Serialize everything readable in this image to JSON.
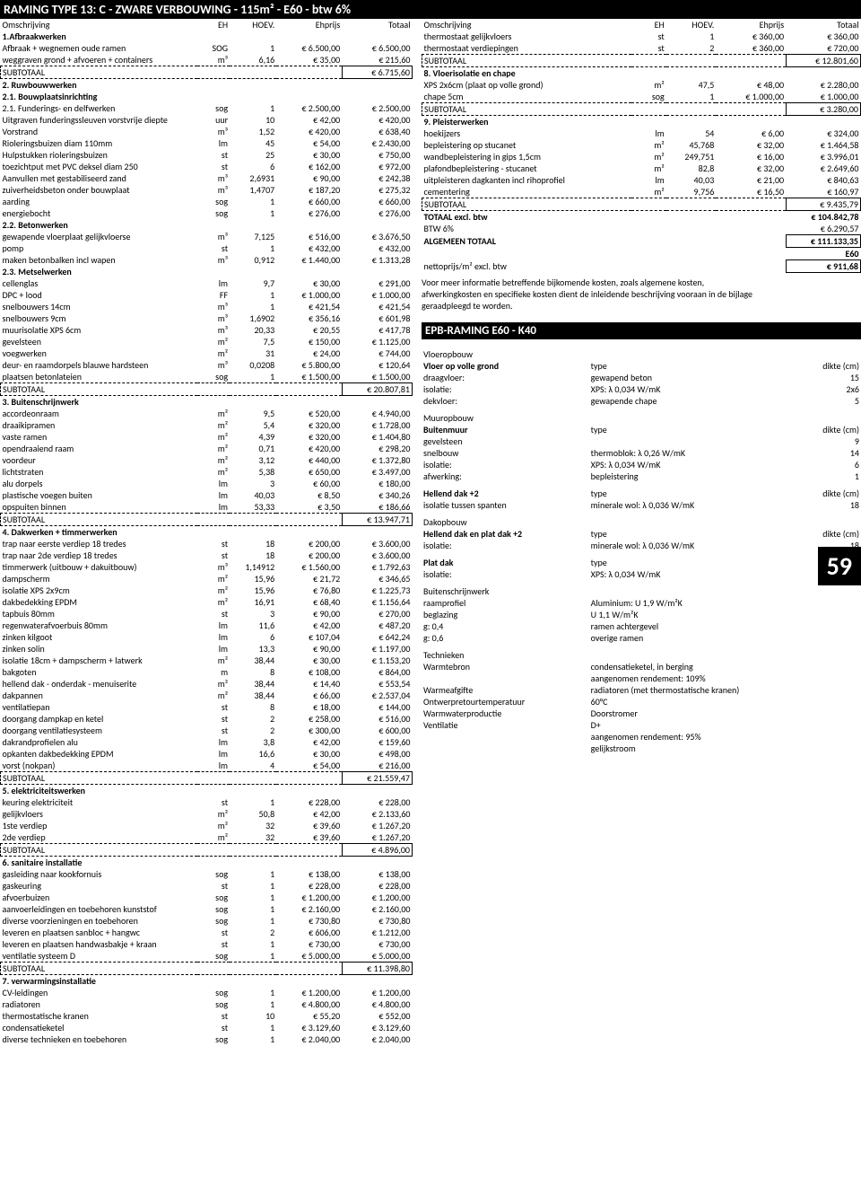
{
  "title": "RAMING TYPE 13: C - ZWARE VERBOUWING - 115m² - E60 - btw 6%",
  "pageNumber": "59",
  "columnHeaders": {
    "desc": "Omschrijving",
    "eh": "EH",
    "hoev": "HOEV.",
    "eprijs": "Ehprijs",
    "totaal": "Totaal"
  },
  "subtotalLabel": "SUBTOTAAL",
  "leftSections": [
    {
      "title": "1.Afbraakwerken",
      "rows": [
        {
          "d": "Afbraak + wegnemen oude ramen",
          "eh": "SOG",
          "h": "1",
          "p": "€ 6.500,00",
          "t": "€ 6.500,00"
        },
        {
          "d": "weggraven grond + afvoeren + containers",
          "eh": "m³",
          "h": "6,16",
          "p": "€ 35,00",
          "t": "€ 215,60"
        }
      ],
      "subtotal": "€ 6.715,60"
    },
    {
      "title": "2. Ruwbouwwerken",
      "rows": []
    },
    {
      "title": "2.1. Bouwplaatsinrichting",
      "sub": true,
      "rows": [
        {
          "d": "2.1. Funderings- en delfwerken",
          "eh": "sog",
          "h": "1",
          "p": "€ 2.500,00",
          "t": "€ 2.500,00"
        },
        {
          "d": "Uitgraven funderingssleuven vorstvrije diepte",
          "eh": "uur",
          "h": "10",
          "p": "€ 42,00",
          "t": "€ 420,00"
        },
        {
          "d": "Vorstrand",
          "eh": "m³",
          "h": "1,52",
          "p": "€ 420,00",
          "t": "€ 638,40"
        },
        {
          "d": "Rioleringsbuizen diam 110mm",
          "eh": "lm",
          "h": "45",
          "p": "€ 54,00",
          "t": "€ 2.430,00"
        },
        {
          "d": "Hulpstukken rioleringsbuizen",
          "eh": "st",
          "h": "25",
          "p": "€ 30,00",
          "t": "€ 750,00"
        },
        {
          "d": "toezichtput met PVC deksel diam 250",
          "eh": "st",
          "h": "6",
          "p": "€ 162,00",
          "t": "€ 972,00"
        },
        {
          "d": "Aanvullen met gestabiliseerd zand",
          "eh": "m³",
          "h": "2,6931",
          "p": "€ 90,00",
          "t": "€ 242,38"
        },
        {
          "d": "zuiverheidsbeton onder bouwplaat",
          "eh": "m³",
          "h": "1,4707",
          "p": "€ 187,20",
          "t": "€ 275,32"
        },
        {
          "d": "aarding",
          "eh": "sog",
          "h": "1",
          "p": "€ 660,00",
          "t": "€ 660,00"
        },
        {
          "d": "energiebocht",
          "eh": "sog",
          "h": "1",
          "p": "€ 276,00",
          "t": "€ 276,00"
        }
      ]
    },
    {
      "title": "2.2. Betonwerken",
      "sub": true,
      "rows": [
        {
          "d": "gewapende vloerplaat gelijkvloerse",
          "eh": "m³",
          "h": "7,125",
          "p": "€ 516,00",
          "t": "€ 3.676,50"
        },
        {
          "d": "pomp",
          "eh": "st",
          "h": "1",
          "p": "€ 432,00",
          "t": "€ 432,00"
        },
        {
          "d": "maken betonbalken incl wapen",
          "eh": "m³",
          "h": "0,912",
          "p": "€ 1.440,00",
          "t": "€ 1.313,28"
        }
      ]
    },
    {
      "title": "2.3. Metselwerken",
      "sub": true,
      "rows": [
        {
          "d": "cellenglas",
          "eh": "lm",
          "h": "9,7",
          "p": "€ 30,00",
          "t": "€ 291,00"
        },
        {
          "d": "DPC + lood",
          "eh": "FF",
          "h": "1",
          "p": "€ 1.000,00",
          "t": "€ 1.000,00"
        },
        {
          "d": "snelbouwers 14cm",
          "eh": "m³",
          "h": "1",
          "p": "€ 421,54",
          "t": "€ 421,54"
        },
        {
          "d": "snelbouwers 9cm",
          "eh": "m³",
          "h": "1,6902",
          "p": "€ 356,16",
          "t": "€ 601,98"
        },
        {
          "d": "muurisolatie XPS 6cm",
          "eh": "m³",
          "h": "20,33",
          "p": "€ 20,55",
          "t": "€ 417,78"
        },
        {
          "d": "gevelsteen",
          "eh": "m²",
          "h": "7,5",
          "p": "€ 150,00",
          "t": "€ 1.125,00"
        },
        {
          "d": "voegwerken",
          "eh": "m²",
          "h": "31",
          "p": "€ 24,00",
          "t": "€ 744,00"
        },
        {
          "d": "deur- en raamdorpels blauwe hardsteen",
          "eh": "m³",
          "h": "0,0208",
          "p": "€ 5.800,00",
          "t": "€ 120,64"
        },
        {
          "d": "plaatsen betonlateien",
          "eh": "sog",
          "h": "1",
          "p": "€ 1.500,00",
          "t": "€ 1.500,00"
        }
      ],
      "subtotal": "€ 20.807,81"
    },
    {
      "title": "3. Buitenschrijnwerk",
      "rows": [
        {
          "d": "accordeonraam",
          "eh": "m²",
          "h": "9,5",
          "p": "€ 520,00",
          "t": "€ 4.940,00"
        },
        {
          "d": "draaikipramen",
          "eh": "m²",
          "h": "5,4",
          "p": "€ 320,00",
          "t": "€ 1.728,00"
        },
        {
          "d": "vaste ramen",
          "eh": "m²",
          "h": "4,39",
          "p": "€ 320,00",
          "t": "€ 1.404,80"
        },
        {
          "d": "opendraaiend raam",
          "eh": "m²",
          "h": "0,71",
          "p": "€ 420,00",
          "t": "€ 298,20"
        },
        {
          "d": "voordeur",
          "eh": "m²",
          "h": "3,12",
          "p": "€ 440,00",
          "t": "€ 1.372,80"
        },
        {
          "d": "lichtstraten",
          "eh": "m²",
          "h": "5,38",
          "p": "€ 650,00",
          "t": "€ 3.497,00"
        },
        {
          "d": "alu dorpels",
          "eh": "lm",
          "h": "3",
          "p": "€ 60,00",
          "t": "€ 180,00"
        },
        {
          "d": "plastische voegen buiten",
          "eh": "lm",
          "h": "40,03",
          "p": "€ 8,50",
          "t": "€ 340,26"
        },
        {
          "d": "opspuiten binnen",
          "eh": "lm",
          "h": "53,33",
          "p": "€ 3,50",
          "t": "€ 186,66"
        }
      ],
      "subtotal": "€ 13.947,71"
    },
    {
      "title": "4. Dakwerken + timmerwerken",
      "rows": [
        {
          "d": "trap naar eerste verdiep 18 tredes",
          "eh": "st",
          "h": "18",
          "p": "€ 200,00",
          "t": "€ 3.600,00"
        },
        {
          "d": "trap naar 2de verdiep 18 tredes",
          "eh": "st",
          "h": "18",
          "p": "€ 200,00",
          "t": "€ 3.600,00"
        },
        {
          "d": "timmerwerk (uitbouw + dakuitbouw)",
          "eh": "m³",
          "h": "1,14912",
          "p": "€ 1.560,00",
          "t": "€ 1.792,63"
        },
        {
          "d": "dampscherm",
          "eh": "m²",
          "h": "15,96",
          "p": "€ 21,72",
          "t": "€ 346,65"
        },
        {
          "d": "isolatie XPS 2x9cm",
          "eh": "m²",
          "h": "15,96",
          "p": "€ 76,80",
          "t": "€ 1.225,73"
        },
        {
          "d": "dakbedekking EPDM",
          "eh": "m²",
          "h": "16,91",
          "p": "€ 68,40",
          "t": "€ 1.156,64"
        },
        {
          "d": "tapbuis 80mm",
          "eh": "st",
          "h": "3",
          "p": "€ 90,00",
          "t": "€ 270,00"
        },
        {
          "d": "regenwaterafvoerbuis 80mm",
          "eh": "lm",
          "h": "11,6",
          "p": "€ 42,00",
          "t": "€ 487,20"
        },
        {
          "d": "zinken kilgoot",
          "eh": "lm",
          "h": "6",
          "p": "€ 107,04",
          "t": "€ 642,24"
        },
        {
          "d": "zinken solin",
          "eh": "lm",
          "h": "13,3",
          "p": "€ 90,00",
          "t": "€ 1.197,00"
        },
        {
          "d": "isolatie 18cm + dampscherm + latwerk",
          "eh": "m²",
          "h": "38,44",
          "p": "€ 30,00",
          "t": "€ 1.153,20"
        },
        {
          "d": "bakgoten",
          "eh": "m",
          "h": "8",
          "p": "€ 108,00",
          "t": "€ 864,00"
        },
        {
          "d": "hellend dak - onderdak - menuiserite",
          "eh": "m²",
          "h": "38,44",
          "p": "€ 14,40",
          "t": "€ 553,54"
        },
        {
          "d": "dakpannen",
          "eh": "m²",
          "h": "38,44",
          "p": "€ 66,00",
          "t": "€ 2.537,04"
        },
        {
          "d": "ventilatiepan",
          "eh": "st",
          "h": "8",
          "p": "€ 18,00",
          "t": "€ 144,00"
        },
        {
          "d": "doorgang dampkap en ketel",
          "eh": "st",
          "h": "2",
          "p": "€ 258,00",
          "t": "€ 516,00"
        },
        {
          "d": "doorgang ventilatiesysteem",
          "eh": "st",
          "h": "2",
          "p": "€ 300,00",
          "t": "€ 600,00"
        },
        {
          "d": "dakrandprofielen alu",
          "eh": "lm",
          "h": "3,8",
          "p": "€ 42,00",
          "t": "€ 159,60"
        },
        {
          "d": "opkanten dakbedekking EPDM",
          "eh": "lm",
          "h": "16,6",
          "p": "€ 30,00",
          "t": "€ 498,00"
        },
        {
          "d": "vorst (nokpan)",
          "eh": "lm",
          "h": "4",
          "p": "€ 54,00",
          "t": "€ 216,00"
        }
      ],
      "subtotal": "€ 21.559,47"
    },
    {
      "title": "5. elektriciteitswerken",
      "rows": [
        {
          "d": "keuring elektriciteit",
          "eh": "st",
          "h": "1",
          "p": "€ 228,00",
          "t": "€ 228,00"
        },
        {
          "d": "gelijkvloers",
          "eh": "m²",
          "h": "50,8",
          "p": "€ 42,00",
          "t": "€ 2.133,60"
        },
        {
          "d": "1ste verdiep",
          "eh": "m²",
          "h": "32",
          "p": "€ 39,60",
          "t": "€ 1.267,20"
        },
        {
          "d": "2de verdiep",
          "eh": "m²",
          "h": "32",
          "p": "€ 39,60",
          "t": "€ 1.267,20"
        }
      ],
      "subtotal": "€ 4.896,00"
    },
    {
      "title": "6. sanitaire installatie",
      "rows": [
        {
          "d": "gasleiding naar kookfornuis",
          "eh": "sog",
          "h": "1",
          "p": "€ 138,00",
          "t": "€ 138,00"
        },
        {
          "d": "gaskeuring",
          "eh": "st",
          "h": "1",
          "p": "€ 228,00",
          "t": "€ 228,00"
        },
        {
          "d": "afvoerbuizen",
          "eh": "sog",
          "h": "1",
          "p": "€ 1.200,00",
          "t": "€ 1.200,00"
        },
        {
          "d": "aanvoerleidingen en toebehoren kunststof",
          "eh": "sog",
          "h": "1",
          "p": "€ 2.160,00",
          "t": "€ 2.160,00"
        },
        {
          "d": "diverse voorzieningen en toebehoren",
          "eh": "sog",
          "h": "1",
          "p": "€ 730,80",
          "t": "€ 730,80"
        },
        {
          "d": "leveren en plaatsen sanbloc + hangwc",
          "eh": "st",
          "h": "2",
          "p": "€ 606,00",
          "t": "€ 1.212,00"
        },
        {
          "d": "leveren en plaatsen handwasbakje + kraan",
          "eh": "st",
          "h": "1",
          "p": "€ 730,00",
          "t": "€ 730,00"
        },
        {
          "d": "ventilatie systeem D",
          "eh": "sog",
          "h": "1",
          "p": "€ 5.000,00",
          "t": "€ 5.000,00"
        }
      ],
      "subtotal": "€ 11.398,80"
    },
    {
      "title": "7. verwarmingsinstallatie",
      "rows": [
        {
          "d": "CV-leidingen",
          "eh": "sog",
          "h": "1",
          "p": "€ 1.200,00",
          "t": "€ 1.200,00"
        },
        {
          "d": "radiatoren",
          "eh": "sog",
          "h": "1",
          "p": "€ 4.800,00",
          "t": "€ 4.800,00"
        },
        {
          "d": "thermostatische kranen",
          "eh": "st",
          "h": "10",
          "p": "€ 55,20",
          "t": "€ 552,00"
        },
        {
          "d": "condensatieketel",
          "eh": "st",
          "h": "1",
          "p": "€ 3.129,60",
          "t": "€ 3.129,60"
        },
        {
          "d": "diverse technieken en toebehoren",
          "eh": "sog",
          "h": "1",
          "p": "€ 2.040,00",
          "t": "€ 2.040,00"
        }
      ]
    }
  ],
  "rightSections": [
    {
      "rows": [
        {
          "d": "thermostaat gelijkvloers",
          "eh": "st",
          "h": "1",
          "p": "€ 360,00",
          "t": "€ 360,00"
        },
        {
          "d": "thermostaat verdiepingen",
          "eh": "st",
          "h": "2",
          "p": "€ 360,00",
          "t": "€ 720,00"
        }
      ],
      "subtotal": "€ 12.801,60"
    },
    {
      "title": "8. Vloerisolatie en chape",
      "rows": [
        {
          "d": "XPS 2x6cm (plaat op volle grond)",
          "eh": "m²",
          "h": "47,5",
          "p": "€ 48,00",
          "t": "€ 2.280,00"
        },
        {
          "d": "chape 5cm",
          "eh": "sog",
          "h": "1",
          "p": "€ 1.000,00",
          "t": "€ 1.000,00"
        }
      ],
      "subtotal": "€ 3.280,00"
    },
    {
      "title": "9. Pleisterwerken",
      "rows": [
        {
          "d": "hoekijzers",
          "eh": "lm",
          "h": "54",
          "p": "€ 6,00",
          "t": "€ 324,00"
        },
        {
          "d": "bepleistering op stucanet",
          "eh": "m²",
          "h": "45,768",
          "p": "€ 32,00",
          "t": "€ 1.464,58"
        },
        {
          "d": "wandbepleistering in gips 1,5cm",
          "eh": "m²",
          "h": "249,751",
          "p": "€ 16,00",
          "t": "€ 3.996,01"
        },
        {
          "d": "plafondbepleistering - stucanet",
          "eh": "m²",
          "h": "82,8",
          "p": "€ 32,00",
          "t": "€ 2.649,60"
        },
        {
          "d": "uitpleisteren dagkanten incl rihoprofiel",
          "eh": "lm",
          "h": "40,03",
          "p": "€ 21,00",
          "t": "€ 840,63"
        },
        {
          "d": "cementering",
          "eh": "m²",
          "h": "9,756",
          "p": "€ 16,50",
          "t": "€ 160,97"
        }
      ],
      "subtotal": "€ 9.435,79"
    }
  ],
  "totals": [
    {
      "label": "TOTAAL excl. btw",
      "value": "€ 104.842,78",
      "bold": true
    },
    {
      "label": "BTW 6%",
      "value": "€ 6.290,57",
      "bold": false
    },
    {
      "label": "ALGEMEEN TOTAAL",
      "value": "€ 111.133,35",
      "bold": true,
      "box": true
    },
    {
      "label": "",
      "value": "E60",
      "bold": true,
      "box": false
    },
    {
      "label": "nettoprijs/m² excl. btw",
      "value": "€ 911,68",
      "bold": false,
      "box": true
    }
  ],
  "note": [
    "Voor meer informatie betreffende  bijkomende kosten, zoals algemene kosten,",
    "afwerkingkosten en specifieke kosten dient de inleidende beschrijving vooraan in de bijlage",
    "geraadpleegd te worden."
  ],
  "epb": {
    "title": "EPB-RAMING E60 - K40",
    "groups": [
      {
        "heading": "Vloeropbouw",
        "hdr": null,
        "rows": [
          {
            "l": "Vloer op volle grond",
            "v": "type",
            "d": "dikte (cm)",
            "bold": true
          },
          {
            "l": "draagvloer:",
            "v": "gewapend beton",
            "d": "15"
          },
          {
            "l": "isolatie:",
            "v": "XPS: λ 0,034 W/mK",
            "d": "2x6"
          },
          {
            "l": "dekvloer:",
            "v": "gewapende chape",
            "d": "5"
          }
        ]
      },
      {
        "heading": "Muuropbouw",
        "rows": [
          {
            "l": "Buitenmuur",
            "v": "type",
            "d": "dikte (cm)",
            "bold": true
          },
          {
            "l": "gevelsteen",
            "v": "",
            "d": "9"
          },
          {
            "l": "snelbouw",
            "v": "thermoblok: λ 0,26 W/mK",
            "d": "14"
          },
          {
            "l": "isolatie:",
            "v": "XPS: λ 0,034 W/mK",
            "d": "6"
          },
          {
            "l": "afwerking:",
            "v": "bepleistering",
            "d": "1"
          }
        ]
      },
      {
        "heading": "",
        "rows": [
          {
            "l": "Hellend dak +2",
            "v": "type",
            "d": "dikte (cm)",
            "bold": true
          },
          {
            "l": "isolatie tussen spanten",
            "v": "minerale wol: λ 0,036 W/mK",
            "d": "18"
          }
        ]
      },
      {
        "heading": "Dakopbouw",
        "rows": [
          {
            "l": "Hellend dak en plat dak +2",
            "v": "type",
            "d": "dikte (cm)",
            "bold": true
          },
          {
            "l": "isolatie:",
            "v": "minerale wol: λ 0,036 W/mK",
            "d": "18"
          }
        ]
      },
      {
        "heading": "",
        "rows": [
          {
            "l": "Plat dak",
            "v": "type",
            "d": "dikte (cm)",
            "bold": true
          },
          {
            "l": "isolatie:",
            "v": "XPS: λ 0,034 W/mK",
            "d": "2x9"
          }
        ]
      },
      {
        "heading": "Buitenschrijnwerk",
        "rows": [
          {
            "l": "raamprofiel",
            "v": "Aluminium: U 1,9 W/m²K",
            "d": ""
          },
          {
            "l": "beglazing",
            "v": "U 1,1 W/m²K",
            "d": ""
          },
          {
            "l": "g: 0,4",
            "v": "ramen achtergevel",
            "d": ""
          },
          {
            "l": "g: 0,6",
            "v": "overige ramen",
            "d": ""
          }
        ]
      },
      {
        "heading": "Technieken",
        "rows": [
          {
            "l": "Warmtebron",
            "v": "condensatieketel, in berging",
            "d": ""
          },
          {
            "l": "",
            "v": "aangenomen rendement: 109%",
            "d": ""
          },
          {
            "l": "Warmeafgifte",
            "v": "radiatoren (met thermostatische kranen)",
            "d": ""
          },
          {
            "l": "Ontwerpretourtemperatuur",
            "v": "60°C",
            "d": ""
          },
          {
            "l": "Warmwaterproductie",
            "v": "Doorstromer",
            "d": ""
          },
          {
            "l": "Ventilatie",
            "v": "D+",
            "d": ""
          },
          {
            "l": "",
            "v": "aangenomen rendement: 95%",
            "d": ""
          },
          {
            "l": "",
            "v": "gelijkstroom",
            "d": ""
          }
        ]
      }
    ]
  }
}
